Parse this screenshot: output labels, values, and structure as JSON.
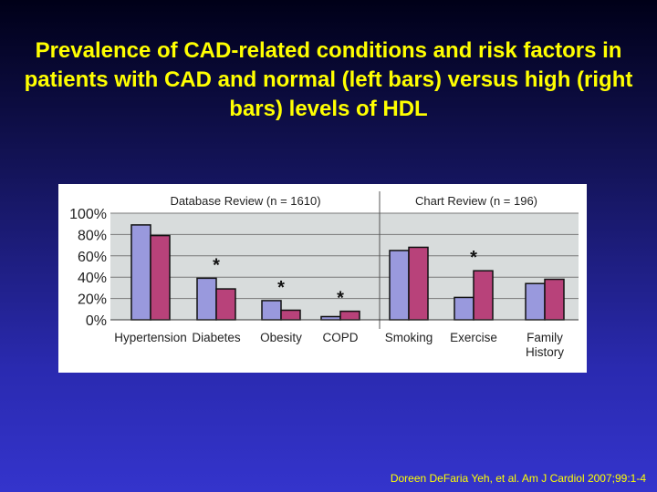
{
  "title": "Prevalence of CAD-related conditions and risk factors in patients with CAD and normal (left bars) versus high (right bars) levels of HDL",
  "citation": "Doreen DeFaria Yeh, et al. Am J Cardiol 2007;99:1-4",
  "chart_data": {
    "type": "bar",
    "groups": [
      {
        "label": "Database Review (n = 1610)",
        "categories": [
          "Hypertension",
          "Diabetes",
          "Obesity",
          "COPD"
        ]
      },
      {
        "label": "Chart Review (n = 196)",
        "categories": [
          "Smoking",
          "Exercise",
          "Family History"
        ]
      }
    ],
    "categories": [
      "Hypertension",
      "Diabetes",
      "Obesity",
      "COPD",
      "Smoking",
      "Exercise",
      "Family History"
    ],
    "series": [
      {
        "name": "Normal HDL (left bars)",
        "color": "#9999dd",
        "values": [
          89,
          39,
          18,
          3,
          65,
          21,
          34
        ]
      },
      {
        "name": "High HDL (right bars)",
        "color": "#b8427a",
        "values": [
          79,
          29,
          9,
          8,
          68,
          46,
          38
        ]
      }
    ],
    "significant": [
      false,
      true,
      true,
      true,
      false,
      true,
      false
    ],
    "significance_marker": "*",
    "yticks": [
      "0%",
      "20%",
      "40%",
      "60%",
      "80%",
      "100%"
    ],
    "ylim": [
      0,
      100
    ],
    "grid": true,
    "xlabel": "",
    "ylabel": ""
  }
}
